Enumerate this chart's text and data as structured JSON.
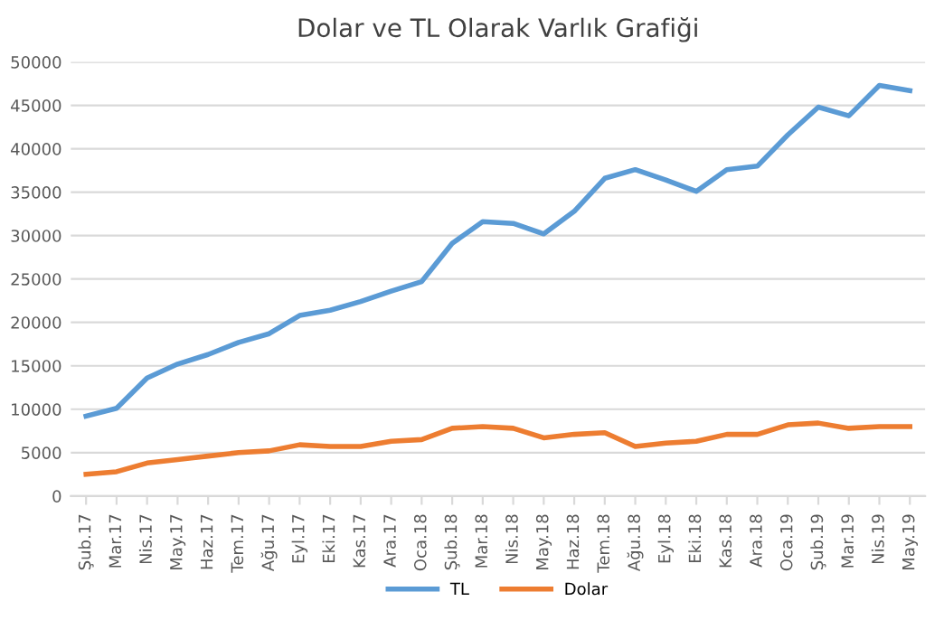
{
  "chart_data": {
    "type": "line",
    "title": "Dolar ve TL Olarak Varlık Grafiği",
    "categories": [
      "Şub.17",
      "Mar.17",
      "Nis.17",
      "May.17",
      "Haz.17",
      "Tem.17",
      "Ağu.17",
      "Eyl.17",
      "Eki.17",
      "Kas.17",
      "Ara.17",
      "Oca.18",
      "Şub.18",
      "Mar.18",
      "Nis.18",
      "May.18",
      "Haz.18",
      "Tem.18",
      "Ağu.18",
      "Eyl.18",
      "Eki.18",
      "Kas.18",
      "Ara.18",
      "Oca.19",
      "Şub.19",
      "Mar.19",
      "Nis.19",
      "May.19"
    ],
    "series": [
      {
        "name": "TL",
        "color": "#5b9bd5",
        "values": [
          9200,
          10100,
          13600,
          15200,
          16300,
          17700,
          18700,
          20800,
          21400,
          22400,
          23600,
          24700,
          29100,
          31600,
          31400,
          30200,
          32800,
          36600,
          37600,
          36400,
          35100,
          37600,
          38000,
          41600,
          44800,
          43800,
          47300,
          46700
        ]
      },
      {
        "name": "Dolar",
        "color": "#ed7d31",
        "values": [
          2500,
          2800,
          3800,
          4200,
          4600,
          5000,
          5200,
          5900,
          5700,
          5700,
          6300,
          6500,
          7800,
          8000,
          7800,
          6700,
          7100,
          7300,
          5700,
          6100,
          6300,
          7100,
          7100,
          8200,
          8400,
          7800,
          8000,
          8000
        ]
      }
    ],
    "ylim": [
      0,
      50000
    ],
    "yticks": [
      0,
      5000,
      10000,
      15000,
      20000,
      25000,
      30000,
      35000,
      40000,
      45000,
      50000
    ],
    "grid": "y",
    "legend": "bottom",
    "marker": "none",
    "line_style": "solid"
  }
}
